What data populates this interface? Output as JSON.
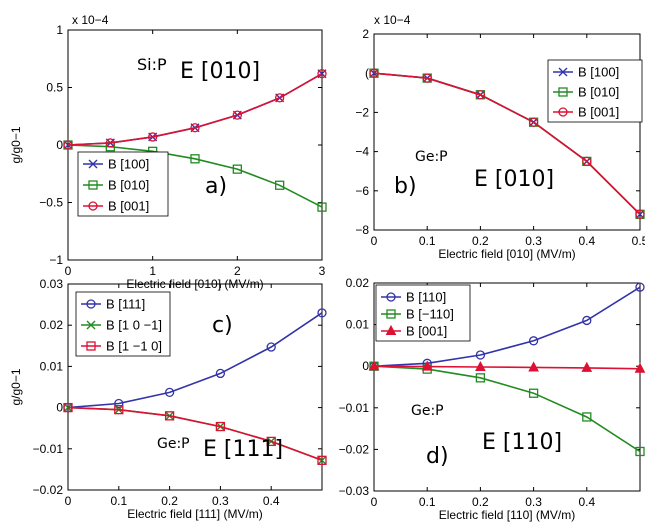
{
  "colors": {
    "blue": "#3333aa",
    "green": "#228b22",
    "red": "#dd1133"
  },
  "chart_data": [
    {
      "panel": "a",
      "type": "line",
      "xlabel": "Electric field [010] (MV/m)",
      "ylabel": "g/g0−1",
      "exponent": "x 10−4",
      "xlim": [
        0,
        3
      ],
      "ylim": [
        -1,
        1
      ],
      "xticks": [
        "0",
        "1",
        "2",
        "3"
      ],
      "yticks": [
        "−1",
        "−0.5",
        "0",
        "0.5",
        "1"
      ],
      "annotations": [
        "Si:P",
        "E [010]",
        "a)"
      ],
      "legend_position": "bottom-left",
      "x": [
        0,
        0.5,
        1,
        1.5,
        2,
        2.5,
        3
      ],
      "series": [
        {
          "name": "B [100]",
          "color": "blue",
          "marker": "x",
          "values": [
            0,
            0.018,
            0.07,
            0.15,
            0.26,
            0.41,
            0.62
          ]
        },
        {
          "name": "B [010]",
          "color": "green",
          "marker": "square",
          "values": [
            0,
            -0.015,
            -0.055,
            -0.12,
            -0.21,
            -0.35,
            -0.54
          ]
        },
        {
          "name": "B [001]",
          "color": "red",
          "marker": "circle",
          "values": [
            0,
            0.018,
            0.07,
            0.15,
            0.26,
            0.41,
            0.62
          ]
        }
      ]
    },
    {
      "panel": "b",
      "type": "line",
      "xlabel": "Electric field [010] (MV/m)",
      "ylabel": "",
      "exponent": "x 10−4",
      "xlim": [
        0,
        0.5
      ],
      "ylim": [
        -8,
        2
      ],
      "xticks": [
        "0",
        "0.1",
        "0.2",
        "0.3",
        "0.4",
        "0.5"
      ],
      "yticks": [
        "−8",
        "−6",
        "−4",
        "−2",
        "(",
        "2"
      ],
      "annotations": [
        "Ge:P",
        "E [010]",
        "b)"
      ],
      "legend_position": "top-right",
      "x": [
        0,
        0.1,
        0.2,
        0.3,
        0.4,
        0.5
      ],
      "series": [
        {
          "name": "B [100]",
          "color": "blue",
          "marker": "x",
          "values": [
            0,
            -0.25,
            -1.1,
            -2.5,
            -4.5,
            -7.2
          ]
        },
        {
          "name": "B [010]",
          "color": "green",
          "marker": "square",
          "values": [
            0,
            -0.25,
            -1.1,
            -2.5,
            -4.5,
            -7.2
          ]
        },
        {
          "name": "B [001]",
          "color": "red",
          "marker": "circle",
          "values": [
            0,
            -0.25,
            -1.1,
            -2.5,
            -4.5,
            -7.2
          ]
        }
      ]
    },
    {
      "panel": "c",
      "type": "line",
      "xlabel": "Electric field [111] (MV/m)",
      "ylabel": "g/g0−1",
      "xlim": [
        0,
        0.5
      ],
      "ylim": [
        -0.02,
        0.03
      ],
      "xticks": [
        "0",
        "0.1",
        "0.2",
        "0.3",
        "0.4"
      ],
      "yticks": [
        "−0.02",
        "−0.01",
        "0",
        "0.01",
        "0.02",
        "0.03"
      ],
      "annotations": [
        "Ge:P",
        "E [111]",
        "c)"
      ],
      "legend_position": "top-left",
      "x": [
        0,
        0.1,
        0.2,
        0.3,
        0.4,
        0.5
      ],
      "series": [
        {
          "name": "B [111]",
          "color": "blue",
          "marker": "circle",
          "values": [
            0,
            0.001,
            0.0037,
            0.0083,
            0.0147,
            0.023
          ]
        },
        {
          "name": "B [1 0 −1]",
          "color": "green",
          "marker": "x",
          "values": [
            0,
            -0.0005,
            -0.002,
            -0.0046,
            -0.0082,
            -0.0128
          ]
        },
        {
          "name": "B [1 −1 0]",
          "color": "red",
          "marker": "square",
          "values": [
            0,
            -0.0005,
            -0.002,
            -0.0046,
            -0.0082,
            -0.0128
          ]
        }
      ]
    },
    {
      "panel": "d",
      "type": "line",
      "xlabel": "Electric field [110] (MV/m)",
      "ylabel": "",
      "xlim": [
        0,
        0.5
      ],
      "ylim": [
        -0.03,
        0.02
      ],
      "xticks": [
        "0",
        "0.1",
        "0.2",
        "0.3",
        "0.4"
      ],
      "yticks": [
        "−0.03",
        "−0.02",
        "−0.01",
        "0",
        "0.01",
        "0.02"
      ],
      "annotations": [
        "Ge:P",
        "E [110]",
        "d)"
      ],
      "legend_position": "top-left",
      "x": [
        0,
        0.1,
        0.2,
        0.3,
        0.4,
        0.5
      ],
      "series": [
        {
          "name": "B [110]",
          "color": "blue",
          "marker": "circle",
          "values": [
            0,
            0.0007,
            0.0027,
            0.0061,
            0.011,
            0.019
          ]
        },
        {
          "name": "B [−110]",
          "color": "green",
          "marker": "square",
          "values": [
            0,
            -0.0007,
            -0.0028,
            -0.0065,
            -0.0122,
            -0.0205
          ]
        },
        {
          "name": "B [001]",
          "color": "red",
          "marker": "triangle",
          "values": [
            0,
            -0.0001,
            -0.0002,
            -0.0003,
            -0.0004,
            -0.0006
          ]
        }
      ]
    }
  ]
}
